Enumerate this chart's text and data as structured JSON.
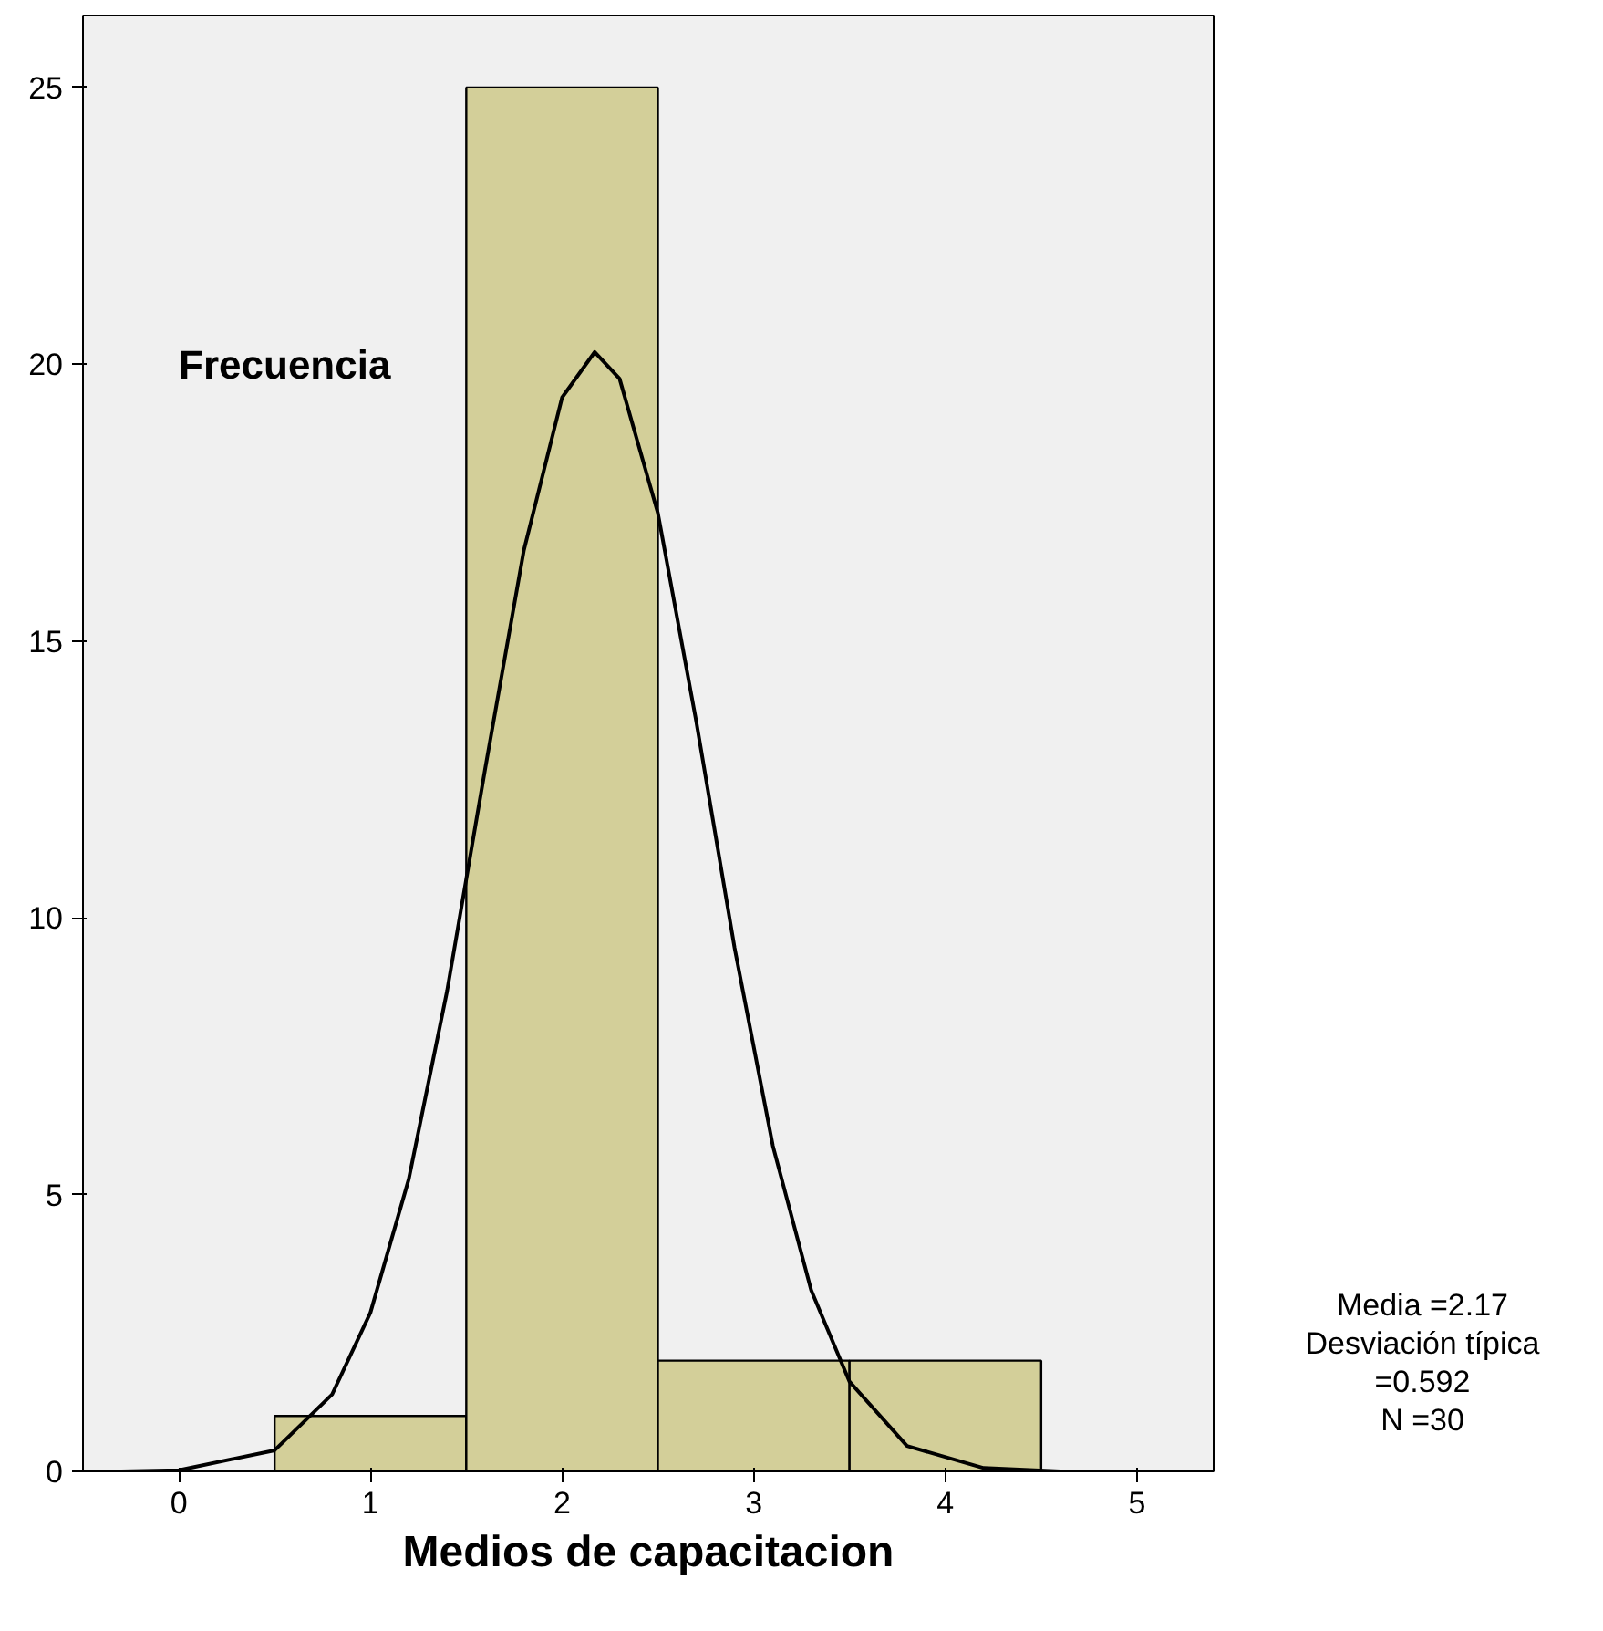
{
  "chart_data": {
    "type": "histogram",
    "xlabel": "Medios de capacitacion",
    "ylabel": "Frecuencia",
    "bins": [
      0.5,
      1.5,
      2.5,
      3.5,
      4.5
    ],
    "values": [
      1,
      25,
      2,
      2
    ],
    "color": "#d3cf99",
    "series": [
      {
        "type": "line",
        "color": "#000000",
        "x": [
          -0.3,
          0,
          0.5,
          0.8,
          1.0,
          1.2,
          1.4,
          1.6,
          1.8,
          2.0,
          2.17,
          2.3,
          2.5,
          2.7,
          2.9,
          3.1,
          3.3,
          3.5,
          3.8,
          4.2,
          4.6,
          5.3
        ],
        "values": [
          0.0,
          0.02,
          0.38,
          1.39,
          2.87,
          5.28,
          8.68,
          12.72,
          16.63,
          19.4,
          20.22,
          19.74,
          17.31,
          13.55,
          9.46,
          5.88,
          3.27,
          1.62,
          0.46,
          0.06,
          0.0,
          0.0
        ]
      }
    ],
    "xlim": [
      -0.5,
      5.4
    ],
    "ylim": [
      0,
      26.3
    ],
    "xticks": [
      0,
      1,
      2,
      3,
      4,
      5
    ],
    "yticks": [
      0,
      5,
      10,
      15,
      20,
      25
    ],
    "grid": false,
    "annotations": [
      "Media =2.17",
      "Desviación típica",
      "=0.592",
      "N =30"
    ]
  }
}
